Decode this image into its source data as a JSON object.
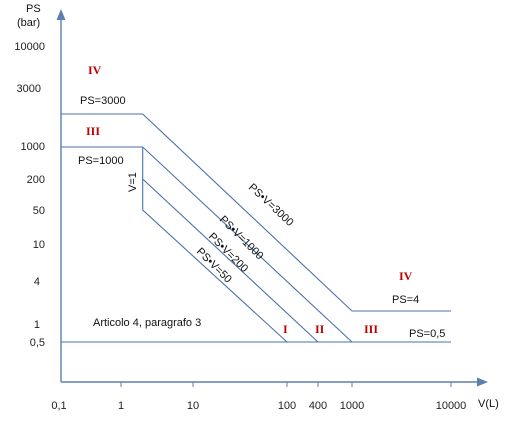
{
  "chart_data": {
    "type": "line",
    "title": "",
    "ylabel": "PS",
    "ylabel_unit": "(bar)",
    "xlabel": "V(L)",
    "x_scale": "log",
    "x_ticks": [
      "0,1",
      "1",
      "10",
      "100",
      "400",
      "1000",
      "10000"
    ],
    "y_ticks": [
      "10000",
      "3000",
      "1000",
      "200",
      "50",
      "10",
      "4",
      "1",
      "0,5"
    ],
    "series": [
      {
        "name": "PS=3000",
        "x": [
          0.1,
          2,
          1000,
          10000
        ],
        "y": [
          3000,
          3000,
          4,
          4
        ]
      },
      {
        "name": "PS=1000",
        "x": [
          0.1,
          2,
          1000
        ],
        "y": [
          1000,
          1000,
          0.5
        ]
      },
      {
        "name": "PS•V=200",
        "x": [
          2,
          2,
          400
        ],
        "y": [
          1000,
          200,
          0.5
        ]
      },
      {
        "name": "PS•V=50",
        "x": [
          2,
          2,
          100
        ],
        "y": [
          200,
          50,
          0.5
        ]
      },
      {
        "name": "PS=0,5",
        "x": [
          0.1,
          10000
        ],
        "y": [
          0.5,
          0.5
        ]
      }
    ],
    "annotations": [
      {
        "text": "PS=3000",
        "x": 0.3,
        "y": 3000
      },
      {
        "text": "PS=1000",
        "x": 0.3,
        "y": 1000
      },
      {
        "text": "PS•V=3000",
        "x": 30,
        "y": 100
      },
      {
        "text": "PS•V=1000",
        "x": 15,
        "y": 67
      },
      {
        "text": "PS•V=200",
        "x": 10,
        "y": 20
      },
      {
        "text": "PS•V=50",
        "x": 10,
        "y": 5
      },
      {
        "text": "V=1",
        "x": 1.5,
        "y": 300
      },
      {
        "text": "PS=4",
        "x": 2000,
        "y": 4
      },
      {
        "text": "PS=0,5",
        "x": 4000,
        "y": 0.5
      },
      {
        "text": "Articolo 4, paragrafo 3",
        "x": 5,
        "y": 1
      }
    ],
    "categories_labels": [
      {
        "text": "IV",
        "x": 0.2,
        "y": 10000
      },
      {
        "text": "III",
        "x": 0.2,
        "y": 1500
      },
      {
        "text": "I",
        "x": 100,
        "y": 0.7
      },
      {
        "text": "II",
        "x": 250,
        "y": 0.7
      },
      {
        "text": "III",
        "x": 1300,
        "y": 0.7
      },
      {
        "text": "IV",
        "x": 3000,
        "y": 10
      }
    ]
  }
}
